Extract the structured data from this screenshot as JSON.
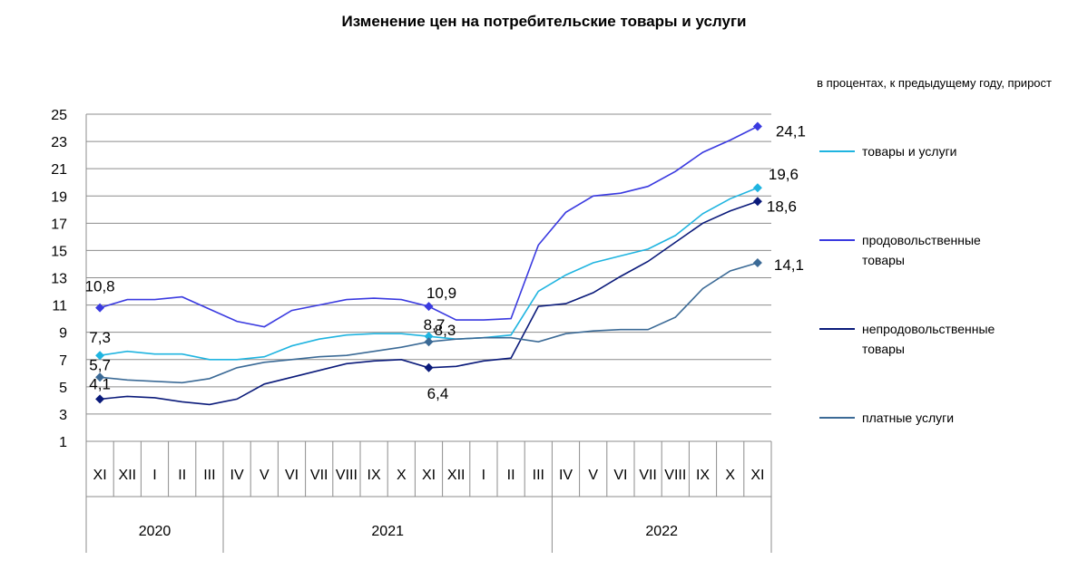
{
  "chart_data": {
    "type": "line",
    "title": "Изменение цен на потребительские товары и услуги",
    "subtitle": "в процентах, к предыдущему году, прирост",
    "ylim": [
      1,
      25
    ],
    "yticks": [
      1,
      3,
      5,
      7,
      9,
      11,
      13,
      15,
      17,
      19,
      21,
      23,
      25
    ],
    "grid": true,
    "legend_position": "right",
    "categories": [
      "XI",
      "XII",
      "I",
      "II",
      "III",
      "IV",
      "V",
      "VI",
      "VII",
      "VIII",
      "IX",
      "X",
      "XI",
      "XII",
      "I",
      "II",
      "III",
      "IV",
      "V",
      "VI",
      "VII",
      "VIII",
      "IX",
      "X",
      "XI"
    ],
    "years": [
      {
        "label": "2020",
        "from": 0,
        "to": 4
      },
      {
        "label": "2021",
        "from": 5,
        "to": 16
      },
      {
        "label": "2022",
        "from": 17,
        "to": 24
      }
    ],
    "series": [
      {
        "name": "товары и услуги",
        "color": "#1fb4e0",
        "values": [
          7.3,
          7.6,
          7.4,
          7.4,
          7.0,
          7.0,
          7.2,
          8.0,
          8.5,
          8.8,
          8.9,
          8.9,
          8.7,
          8.5,
          8.6,
          8.8,
          12.0,
          13.2,
          14.1,
          14.6,
          15.1,
          16.1,
          17.7,
          18.8,
          19.6
        ]
      },
      {
        "name": "продовольственные товары",
        "color": "#3a3ae0",
        "values": [
          10.8,
          11.4,
          11.4,
          11.6,
          10.7,
          9.8,
          9.4,
          10.6,
          11.0,
          11.4,
          11.5,
          11.4,
          10.9,
          9.9,
          9.9,
          10.0,
          15.4,
          17.8,
          19.0,
          19.2,
          19.7,
          20.8,
          22.2,
          23.1,
          24.1
        ]
      },
      {
        "name": "непродовольственные товары",
        "color": "#0a1a7a",
        "values": [
          4.1,
          4.3,
          4.2,
          3.9,
          3.7,
          4.1,
          5.2,
          5.7,
          6.2,
          6.7,
          6.9,
          7.0,
          6.4,
          6.5,
          6.9,
          7.1,
          10.9,
          11.1,
          11.9,
          13.1,
          14.2,
          15.6,
          17.0,
          17.9,
          18.6
        ]
      },
      {
        "name": "платные услуги",
        "color": "#3b6a96",
        "values": [
          5.7,
          5.5,
          5.4,
          5.3,
          5.6,
          6.4,
          6.8,
          7.0,
          7.2,
          7.3,
          7.6,
          7.9,
          8.3,
          8.5,
          8.6,
          8.6,
          8.3,
          8.9,
          9.1,
          9.2,
          9.2,
          10.1,
          12.2,
          13.5,
          14.1
        ]
      }
    ],
    "point_labels": [
      {
        "series": 1,
        "index": 0,
        "text": "10,8"
      },
      {
        "series": 0,
        "index": 0,
        "text": "7,3"
      },
      {
        "series": 3,
        "index": 0,
        "text": "5,7"
      },
      {
        "series": 2,
        "index": 0,
        "text": "4,1"
      },
      {
        "series": 1,
        "index": 12,
        "text": "10,9"
      },
      {
        "series": 0,
        "index": 12,
        "text": "8,7"
      },
      {
        "series": 3,
        "index": 12,
        "text": "8,3"
      },
      {
        "series": 2,
        "index": 12,
        "text": "6,4"
      },
      {
        "series": 1,
        "index": 24,
        "text": "24,1"
      },
      {
        "series": 0,
        "index": 24,
        "text": "19,6"
      },
      {
        "series": 2,
        "index": 24,
        "text": "18,6"
      },
      {
        "series": 3,
        "index": 24,
        "text": "14,1"
      }
    ]
  }
}
